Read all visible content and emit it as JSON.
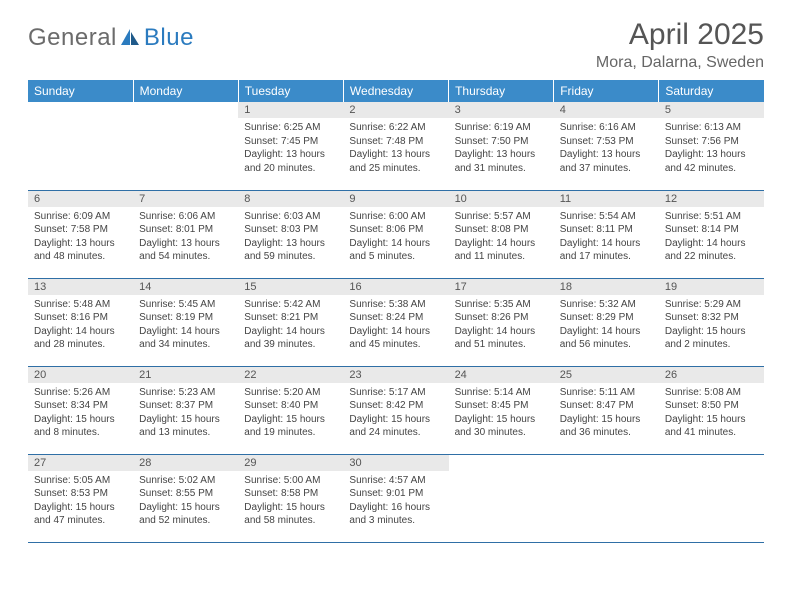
{
  "logo": {
    "part1": "General",
    "part2": "Blue"
  },
  "title": "April 2025",
  "location": "Mora, Dalarna, Sweden",
  "colors": {
    "header_bg": "#3b8bc9",
    "header_text": "#ffffff",
    "row_divider": "#2f6fa6",
    "daynum_bg": "#e9e9e9",
    "body_text": "#444444",
    "logo_gray": "#6b6b6b",
    "logo_blue": "#2b7bbf"
  },
  "day_headers": [
    "Sunday",
    "Monday",
    "Tuesday",
    "Wednesday",
    "Thursday",
    "Friday",
    "Saturday"
  ],
  "weeks": [
    [
      null,
      null,
      {
        "n": "1",
        "sunrise": "6:25 AM",
        "sunset": "7:45 PM",
        "daylight": "13 hours and 20 minutes."
      },
      {
        "n": "2",
        "sunrise": "6:22 AM",
        "sunset": "7:48 PM",
        "daylight": "13 hours and 25 minutes."
      },
      {
        "n": "3",
        "sunrise": "6:19 AM",
        "sunset": "7:50 PM",
        "daylight": "13 hours and 31 minutes."
      },
      {
        "n": "4",
        "sunrise": "6:16 AM",
        "sunset": "7:53 PM",
        "daylight": "13 hours and 37 minutes."
      },
      {
        "n": "5",
        "sunrise": "6:13 AM",
        "sunset": "7:56 PM",
        "daylight": "13 hours and 42 minutes."
      }
    ],
    [
      {
        "n": "6",
        "sunrise": "6:09 AM",
        "sunset": "7:58 PM",
        "daylight": "13 hours and 48 minutes."
      },
      {
        "n": "7",
        "sunrise": "6:06 AM",
        "sunset": "8:01 PM",
        "daylight": "13 hours and 54 minutes."
      },
      {
        "n": "8",
        "sunrise": "6:03 AM",
        "sunset": "8:03 PM",
        "daylight": "13 hours and 59 minutes."
      },
      {
        "n": "9",
        "sunrise": "6:00 AM",
        "sunset": "8:06 PM",
        "daylight": "14 hours and 5 minutes."
      },
      {
        "n": "10",
        "sunrise": "5:57 AM",
        "sunset": "8:08 PM",
        "daylight": "14 hours and 11 minutes."
      },
      {
        "n": "11",
        "sunrise": "5:54 AM",
        "sunset": "8:11 PM",
        "daylight": "14 hours and 17 minutes."
      },
      {
        "n": "12",
        "sunrise": "5:51 AM",
        "sunset": "8:14 PM",
        "daylight": "14 hours and 22 minutes."
      }
    ],
    [
      {
        "n": "13",
        "sunrise": "5:48 AM",
        "sunset": "8:16 PM",
        "daylight": "14 hours and 28 minutes."
      },
      {
        "n": "14",
        "sunrise": "5:45 AM",
        "sunset": "8:19 PM",
        "daylight": "14 hours and 34 minutes."
      },
      {
        "n": "15",
        "sunrise": "5:42 AM",
        "sunset": "8:21 PM",
        "daylight": "14 hours and 39 minutes."
      },
      {
        "n": "16",
        "sunrise": "5:38 AM",
        "sunset": "8:24 PM",
        "daylight": "14 hours and 45 minutes."
      },
      {
        "n": "17",
        "sunrise": "5:35 AM",
        "sunset": "8:26 PM",
        "daylight": "14 hours and 51 minutes."
      },
      {
        "n": "18",
        "sunrise": "5:32 AM",
        "sunset": "8:29 PM",
        "daylight": "14 hours and 56 minutes."
      },
      {
        "n": "19",
        "sunrise": "5:29 AM",
        "sunset": "8:32 PM",
        "daylight": "15 hours and 2 minutes."
      }
    ],
    [
      {
        "n": "20",
        "sunrise": "5:26 AM",
        "sunset": "8:34 PM",
        "daylight": "15 hours and 8 minutes."
      },
      {
        "n": "21",
        "sunrise": "5:23 AM",
        "sunset": "8:37 PM",
        "daylight": "15 hours and 13 minutes."
      },
      {
        "n": "22",
        "sunrise": "5:20 AM",
        "sunset": "8:40 PM",
        "daylight": "15 hours and 19 minutes."
      },
      {
        "n": "23",
        "sunrise": "5:17 AM",
        "sunset": "8:42 PM",
        "daylight": "15 hours and 24 minutes."
      },
      {
        "n": "24",
        "sunrise": "5:14 AM",
        "sunset": "8:45 PM",
        "daylight": "15 hours and 30 minutes."
      },
      {
        "n": "25",
        "sunrise": "5:11 AM",
        "sunset": "8:47 PM",
        "daylight": "15 hours and 36 minutes."
      },
      {
        "n": "26",
        "sunrise": "5:08 AM",
        "sunset": "8:50 PM",
        "daylight": "15 hours and 41 minutes."
      }
    ],
    [
      {
        "n": "27",
        "sunrise": "5:05 AM",
        "sunset": "8:53 PM",
        "daylight": "15 hours and 47 minutes."
      },
      {
        "n": "28",
        "sunrise": "5:02 AM",
        "sunset": "8:55 PM",
        "daylight": "15 hours and 52 minutes."
      },
      {
        "n": "29",
        "sunrise": "5:00 AM",
        "sunset": "8:58 PM",
        "daylight": "15 hours and 58 minutes."
      },
      {
        "n": "30",
        "sunrise": "4:57 AM",
        "sunset": "9:01 PM",
        "daylight": "16 hours and 3 minutes."
      },
      null,
      null,
      null
    ]
  ],
  "labels": {
    "sunrise": "Sunrise: ",
    "sunset": "Sunset: ",
    "daylight": "Daylight: "
  }
}
